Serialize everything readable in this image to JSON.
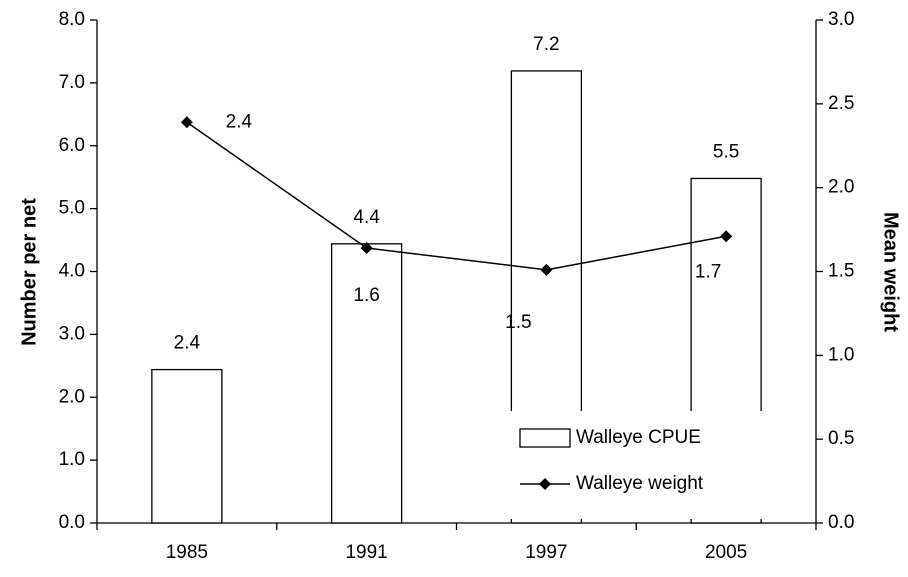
{
  "chart_data": {
    "type": "bar",
    "categories": [
      "1985",
      "1991",
      "1997",
      "2005"
    ],
    "series": [
      {
        "name": "Walleye CPUE",
        "type": "bar",
        "color": "#ffffff",
        "values": [
          2.44,
          4.44,
          7.19,
          5.48
        ],
        "value_labels": [
          "2.4",
          "4.4",
          "7.2",
          "5.5"
        ]
      },
      {
        "name": "Walleye weight",
        "type": "line",
        "axis": "y2",
        "color": "#000000",
        "values": [
          2.39,
          1.64,
          1.51,
          1.71
        ],
        "value_labels": [
          "2.4",
          "1.6",
          "1.5",
          "1.7"
        ]
      }
    ],
    "ylabel": "Number per net",
    "y2label": "Mean weight",
    "ylim": [
      0,
      8
    ],
    "yticks": [
      {
        "value": 0,
        "label": "0.0"
      },
      {
        "value": 1,
        "label": "1.0"
      },
      {
        "value": 2,
        "label": "2.0"
      },
      {
        "value": 3,
        "label": "3.0"
      },
      {
        "value": 4,
        "label": "4.0"
      },
      {
        "value": 5,
        "label": "5.0"
      },
      {
        "value": 6,
        "label": "6.0"
      },
      {
        "value": 7,
        "label": "7.0"
      },
      {
        "value": 8,
        "label": "8.0"
      }
    ],
    "y2lim": [
      0,
      3
    ],
    "y2ticks": [
      {
        "value": 0,
        "label": "0.0"
      },
      0.5,
      {
        "value": 1,
        "label": "1.0"
      },
      1.5,
      {
        "value": 2,
        "label": "2.0"
      },
      2.5,
      {
        "value": 3,
        "label": "3.0"
      }
    ],
    "legend": "lower right",
    "grid": false
  }
}
